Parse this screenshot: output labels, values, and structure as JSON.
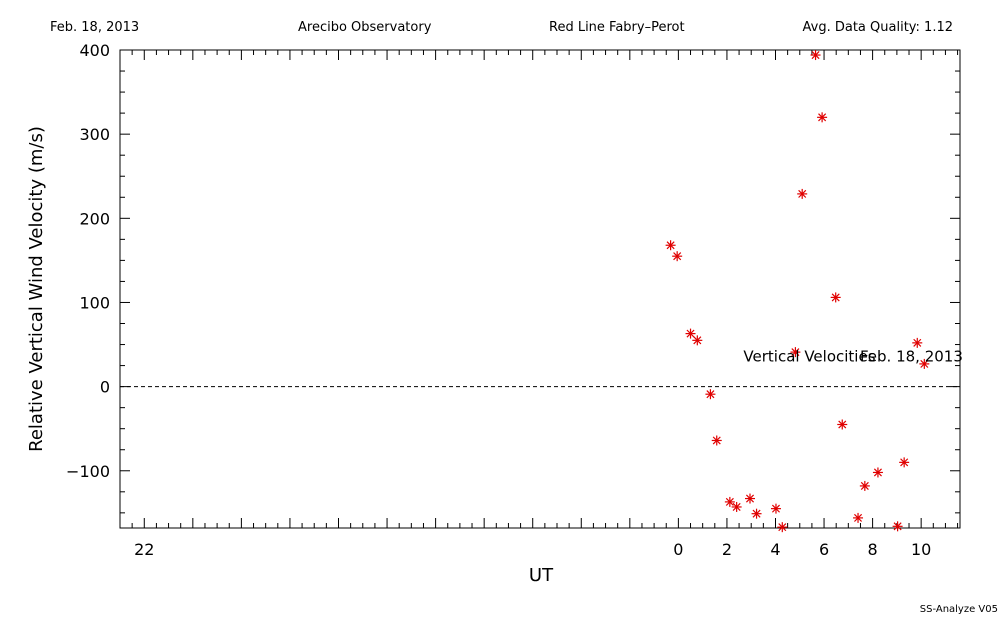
{
  "header": {
    "date": "Feb. 18, 2013",
    "observatory": "Arecibo Observatory",
    "instrument": "Red Line Fabry–Perot",
    "quality": "Avg. Data Quality: 1.12"
  },
  "footer": {
    "software": "SS-Analyze V05"
  },
  "colors": {
    "marker": "#e00000",
    "axis": "#000000"
  },
  "chart_data": {
    "type": "scatter",
    "title": "",
    "xlabel": "UT",
    "ylabel": "Relative Vertical Wind Velocity (m/s)",
    "xlim": [
      -23.0,
      11.6
    ],
    "ylim": [
      -168,
      400
    ],
    "x_ticks": [
      -22,
      0,
      2,
      4,
      6,
      8,
      10
    ],
    "x_tick_labels": [
      "22",
      "0",
      "2",
      "4",
      "6",
      "8",
      "10"
    ],
    "y_ticks": [
      400,
      300,
      200,
      100,
      0,
      -100
    ],
    "y_tick_labels": [
      "400",
      "300",
      "200",
      "100",
      "0",
      "−100"
    ],
    "zero_line": "dashed",
    "grid": false,
    "annotations": [
      {
        "text": "Vertical Velocities",
        "x": 5.4,
        "y": 36
      },
      {
        "text": "Feb. 18, 2013",
        "x": 9.6,
        "y": 36
      }
    ],
    "series": [
      {
        "marker": "asterisk",
        "x": [
          -0.32,
          -0.05,
          0.5,
          0.78,
          1.32,
          1.58,
          2.12,
          2.4,
          2.95,
          3.22,
          4.02,
          4.28,
          4.82,
          5.1,
          5.65,
          5.92,
          6.48,
          6.75,
          7.4,
          7.68,
          8.22,
          9.03,
          9.3,
          9.84,
          10.13
        ],
        "y": [
          168,
          155,
          63,
          55,
          -9,
          -64,
          -137,
          -143,
          -133,
          -151,
          -145,
          -167,
          41,
          229,
          394,
          320,
          106,
          -45,
          -156,
          -118,
          -102,
          -166,
          -90,
          52,
          27
        ]
      }
    ]
  }
}
